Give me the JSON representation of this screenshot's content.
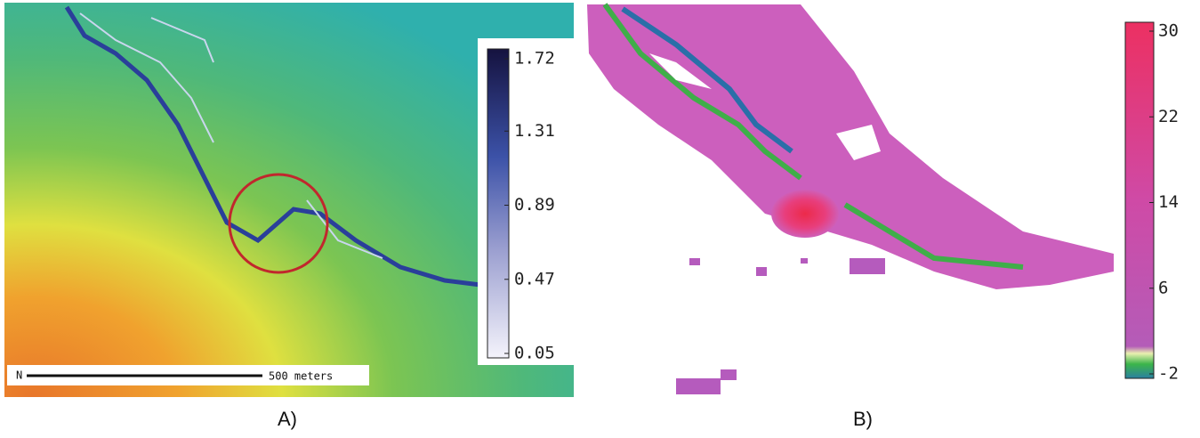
{
  "panels": [
    {
      "label": "A)",
      "colorbar": {
        "ticks": [
          1.72,
          1.31,
          0.89,
          0.47,
          0.05
        ]
      },
      "scale_bar": "500 meters"
    },
    {
      "label": "B)",
      "colorbar": {
        "ticks": [
          30,
          22,
          14,
          6,
          -2
        ]
      }
    }
  ]
}
